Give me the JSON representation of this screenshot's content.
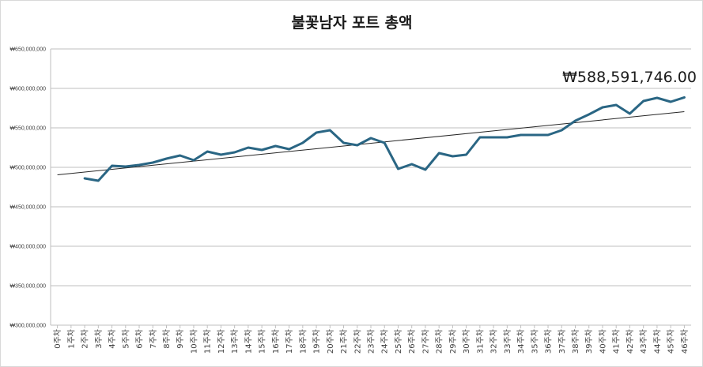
{
  "chart_data": {
    "type": "line",
    "title": "불꽃남자 포트 총액",
    "xlabel": "",
    "ylabel": "",
    "ylim": [
      300000000,
      650000000
    ],
    "y_ticks": [
      300000000,
      350000000,
      400000000,
      450000000,
      500000000,
      550000000,
      600000000,
      650000000
    ],
    "y_tick_labels": [
      "₩300,000,000",
      "₩350,000,000",
      "₩400,000,000",
      "₩450,000,000",
      "₩500,000,000",
      "₩550,000,000",
      "₩600,000,000",
      "₩650,000,000"
    ],
    "categories": [
      "0주차",
      "1주차",
      "2주차",
      "3주차",
      "4주차",
      "5주차",
      "6주차",
      "7주차",
      "8주차",
      "9주차",
      "10주차",
      "11주차",
      "12주차",
      "13주차",
      "14주차",
      "15주차",
      "16주차",
      "17주차",
      "18주차",
      "19주차",
      "20주차",
      "21주차",
      "22주차",
      "23주차",
      "24주차",
      "25주차",
      "26주차",
      "27주차",
      "28주차",
      "29주차",
      "30주차",
      "31주차",
      "32주차",
      "33주차",
      "34주차",
      "35주차",
      "36주차",
      "37주차",
      "38주차",
      "39주차",
      "40주차",
      "41주차",
      "42주차",
      "43주차",
      "44주차",
      "45주차",
      "46주차"
    ],
    "series": [
      {
        "color": "#2a6684",
        "values": [
          null,
          null,
          486000000,
          483000000,
          502000000,
          501000000,
          503000000,
          506000000,
          511000000,
          515000000,
          509000000,
          520000000,
          516000000,
          519000000,
          525000000,
          522000000,
          527000000,
          523000000,
          531000000,
          544000000,
          547000000,
          531000000,
          528000000,
          537000000,
          531000000,
          498000000,
          504000000,
          497000000,
          518000000,
          514000000,
          516000000,
          538000000,
          538000000,
          538000000,
          541000000,
          541000000,
          541000000,
          547000000,
          559000000,
          567000000,
          576000000,
          579000000,
          568000000,
          584000000,
          588000000,
          583000000,
          588591746
        ]
      }
    ],
    "trendline": {
      "type": "linear",
      "start": 490500000,
      "end": 570500000,
      "color": "#262626"
    },
    "annotation": {
      "text": "₩588,591,746.00"
    },
    "grid": true,
    "legend": "none"
  }
}
